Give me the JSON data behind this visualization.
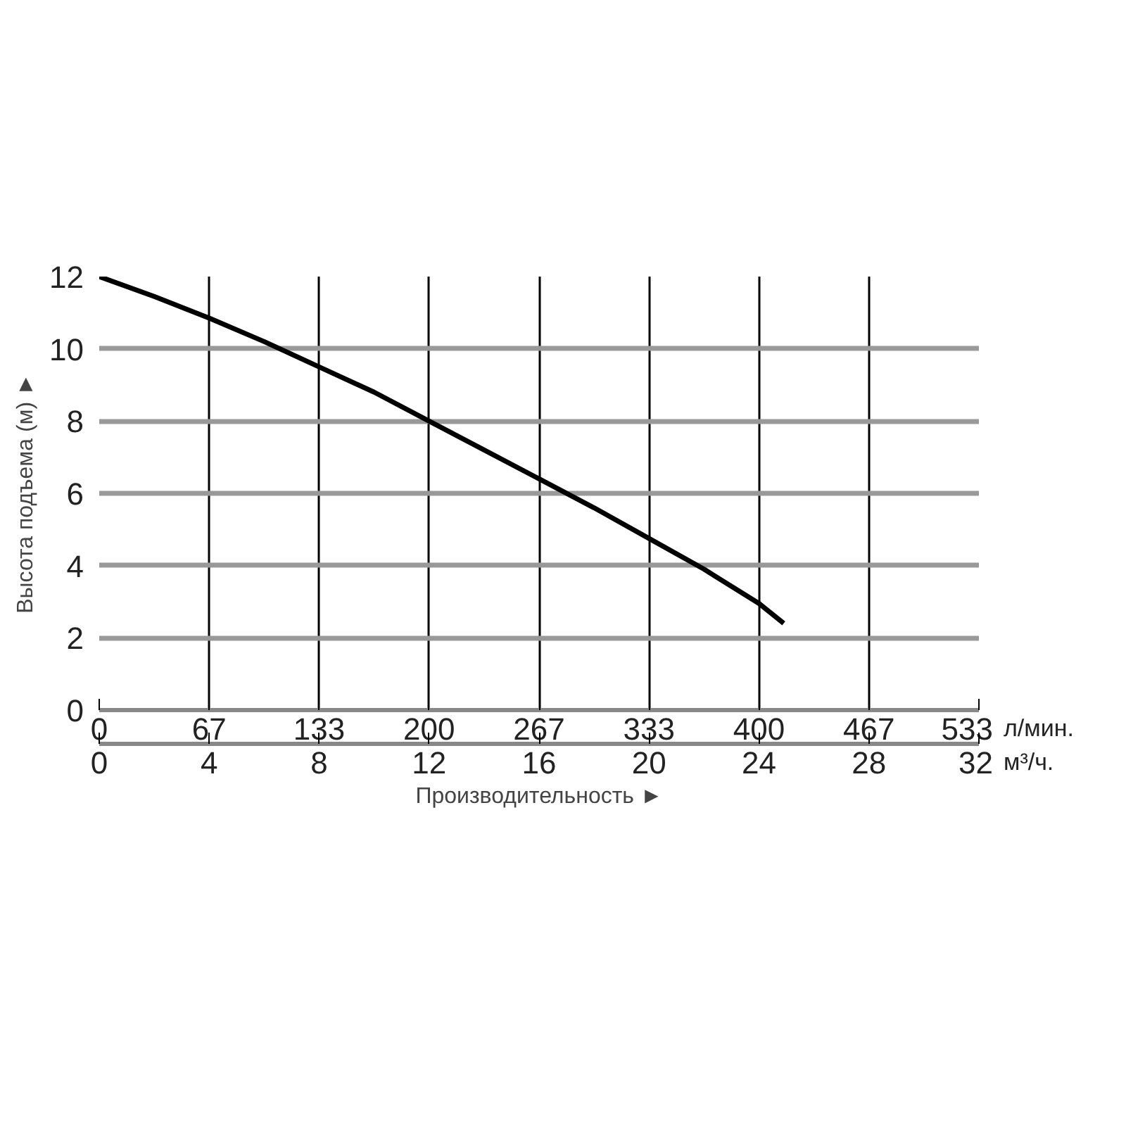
{
  "chart_data": {
    "type": "line",
    "xlabel": "Производительность ►",
    "ylabel": "Высота подъема (м) ►",
    "x2label": "л/мин.",
    "annotations": [
      "м³/ч."
    ],
    "x": [
      0,
      2,
      4,
      6,
      8,
      10,
      12,
      14,
      16,
      18,
      20,
      22,
      24,
      24.9
    ],
    "series": [
      {
        "color": "#000000",
        "values": [
          12,
          11.45,
          10.85,
          10.2,
          9.5,
          8.8,
          8.0,
          7.2,
          6.4,
          5.6,
          4.75,
          3.9,
          2.95,
          2.4
        ]
      }
    ],
    "xlim": [
      0,
      32
    ],
    "xticks": [
      0,
      4,
      8,
      12,
      16,
      20,
      24,
      28,
      32
    ],
    "x2lim": [
      0,
      533.33
    ],
    "x2ticks": [
      0,
      {
        "value": 66.67,
        "label": "67"
      },
      {
        "value": 133.33,
        "label": "133"
      },
      200,
      {
        "value": 266.67,
        "label": "267"
      },
      {
        "value": 333.33,
        "label": "333"
      },
      400,
      {
        "value": 466.67,
        "label": "467"
      },
      {
        "value": 533.33,
        "label": "533"
      }
    ],
    "ylim": [
      0,
      12
    ],
    "yticks": [
      0,
      2,
      4,
      6,
      8,
      10,
      12
    ],
    "grid": "xy",
    "marker": "none",
    "line_style": "solid"
  }
}
